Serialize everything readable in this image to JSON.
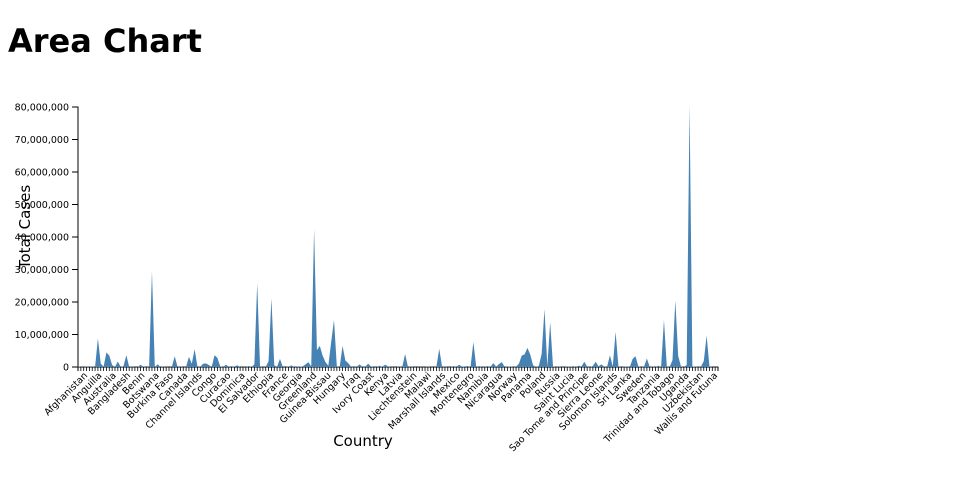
{
  "page": {
    "title": "Area Chart"
  },
  "chart_data": {
    "type": "area",
    "xlabel": "Country",
    "ylabel": "Total Cases",
    "ylim": [
      0,
      80000000
    ],
    "y_ticks": [
      0,
      10000000,
      20000000,
      30000000,
      40000000,
      50000000,
      60000000,
      70000000,
      80000000
    ],
    "y_tick_labels": [
      "0",
      "10,000,000",
      "20,000,000",
      "30,000,000",
      "40,000,000",
      "50,000,000",
      "60,000,000",
      "70,000,000",
      "80,000,000"
    ],
    "x_tick_labels": [
      "Afghanistan",
      "Anguilla",
      "Australia",
      "Bangladesh",
      "Benin",
      "Botswana",
      "Burkina Faso",
      "Canada",
      "Channel Islands",
      "Congo",
      "Curacao",
      "Dominica",
      "El Salvador",
      "Ethiopia",
      "France",
      "Georgia",
      "Greenland",
      "Guinea-Bissau",
      "Hungary",
      "Iraq",
      "Ivory Coast",
      "Kenya",
      "Latvia",
      "Liechtenstein",
      "Malawi",
      "Marshall Islands",
      "Mexico",
      "Montenegro",
      "Namibia",
      "Nicaragua",
      "Norway",
      "Panama",
      "Poland",
      "Russia",
      "Saint Lucia",
      "Sao Tome and Principe",
      "Sierra Leone",
      "Solomon Islands",
      "Sri Lanka",
      "Sweden",
      "Tanzania",
      "Trinidad and Tobago",
      "Uganda",
      "Uzbekistan",
      "Wallis and Futuna"
    ],
    "fill_color": "#4682b4",
    "values": [
      200000,
      50000,
      30000,
      100000,
      50000,
      150000,
      20000,
      8800000,
      1000000,
      100000,
      4500000,
      3500000,
      600000,
      50000,
      1700000,
      50000,
      300000,
      3600000,
      40000,
      100000,
      30000,
      50000,
      700000,
      100000,
      30000,
      30000,
      29500000,
      50000,
      800000,
      50000,
      100000,
      30000,
      30000,
      50000,
      3300000,
      30000,
      100000,
      50000,
      50000,
      3100000,
      1000000,
      5500000,
      50000,
      100000,
      1000000,
      1100000,
      600000,
      30000,
      3600000,
      2800000,
      200000,
      50000,
      700000,
      100000,
      30000,
      200000,
      500000,
      30000,
      50000,
      30000,
      300000,
      50000,
      800000,
      25800000,
      100000,
      50000,
      30000,
      1800000,
      21100000,
      500000,
      100000,
      2500000,
      50000,
      50000,
      100000,
      500000,
      50000,
      100000,
      100000,
      200000,
      800000,
      1500000,
      200000,
      42500000,
      5200000,
      6500000,
      3500000,
      1500000,
      400000,
      7600000,
      14500000,
      100000,
      50000,
      6500000,
      2000000,
      1200000,
      100000,
      50000,
      100000,
      800000,
      50000,
      100000,
      1000000,
      200000,
      50000,
      50000,
      400000,
      100000,
      700000,
      200000,
      50000,
      30000,
      50000,
      100000,
      30000,
      4000000,
      50000,
      100000,
      30000,
      50000,
      50000,
      50000,
      30000,
      100000,
      50000,
      30000,
      50000,
      5600000,
      50000,
      100000,
      50000,
      50000,
      300000,
      50000,
      700000,
      100000,
      200000,
      300000,
      30000,
      7700000,
      50000,
      300000,
      50000,
      100000,
      300000,
      50000,
      1200000,
      100000,
      900000,
      1500000,
      50000,
      100000,
      200000,
      30000,
      100000,
      1000000,
      3500000,
      3900000,
      5900000,
      3800000,
      500000,
      100000,
      300000,
      4000000,
      17800000,
      100000,
      13800000,
      200000,
      50000,
      100000,
      30000,
      50000,
      100000,
      200000,
      50000,
      100000,
      400000,
      200000,
      1600000,
      100000,
      50000,
      300000,
      1600000,
      200000,
      800000,
      100000,
      50000,
      3600000,
      200000,
      10800000,
      100000,
      50000,
      100000,
      200000,
      50000,
      2500000,
      3300000,
      200000,
      50000,
      100000,
      2600000,
      50000,
      100000,
      50000,
      400000,
      100000,
      14500000,
      100000,
      50000,
      2100000,
      20500000,
      3400000,
      100000,
      50000,
      600000,
      80500000,
      100000,
      200000,
      50000,
      100000,
      1800000,
      9700000,
      100000,
      50000,
      50000,
      50000
    ]
  }
}
